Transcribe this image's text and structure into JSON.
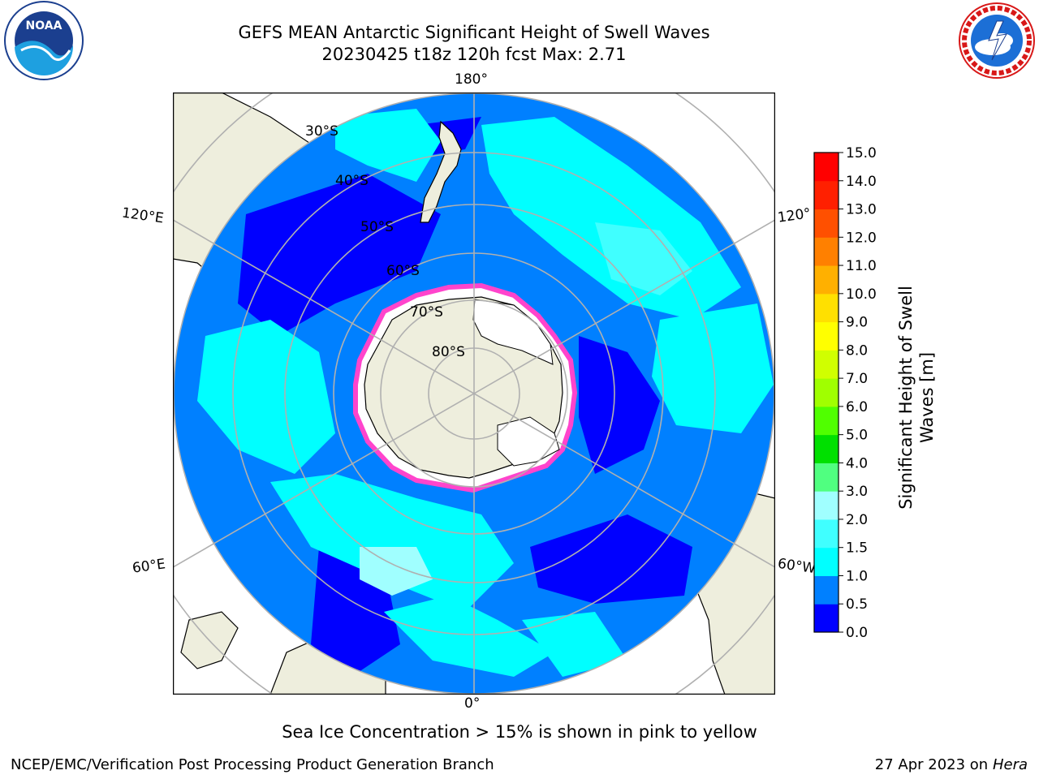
{
  "title": {
    "line1": "GEFS MEAN Antarctic Significant Height of Swell Waves",
    "line2": "20230425 t18z 120h fcst   Max: 2.71"
  },
  "map": {
    "projection": "south-polar-stereographic",
    "meridian_labels": {
      "top": "180°",
      "bottom": "0°",
      "left_upper": "120°E",
      "left_lower": "60°E",
      "right_upper": "120°",
      "right_lower": "60°W"
    },
    "parallel_labels": [
      "30°S",
      "40°S",
      "50°S",
      "60°S",
      "70°S",
      "80°S"
    ],
    "colors": {
      "land": "#eeeedd",
      "ice_interior": "#ffffff",
      "ice_edge": "#ff44cc",
      "graticule": "#b0b0b0"
    }
  },
  "colorbar": {
    "label_line1": "Significant Height of Swell",
    "label_line2": "Waves [m]",
    "ticks": [
      "0.0",
      "0.5",
      "1.0",
      "1.5",
      "2.0",
      "3.0",
      "4.0",
      "5.0",
      "6.0",
      "7.0",
      "8.0",
      "9.0",
      "10.0",
      "11.0",
      "12.0",
      "13.0",
      "14.0",
      "15.0"
    ],
    "colors": [
      "#0000ff",
      "#0080ff",
      "#00ffff",
      "#40ffff",
      "#a0ffff",
      "#50ff80",
      "#00e000",
      "#50ff00",
      "#a0ff00",
      "#d0ff00",
      "#ffff00",
      "#ffe000",
      "#ffb000",
      "#ff8000",
      "#ff5000",
      "#ff2000",
      "#ff0000"
    ]
  },
  "footer": {
    "ice_note": "Sea Ice Concentration > 15% is shown in pink to yellow",
    "credit": "NCEP/EMC/Verification Post Processing Product Generation Branch",
    "date": "27 Apr 2023 on",
    "host": "Hera"
  },
  "logos": {
    "noaa_text": "NOAA",
    "nws_text": "NATIONAL WEATHER SERVICE"
  }
}
